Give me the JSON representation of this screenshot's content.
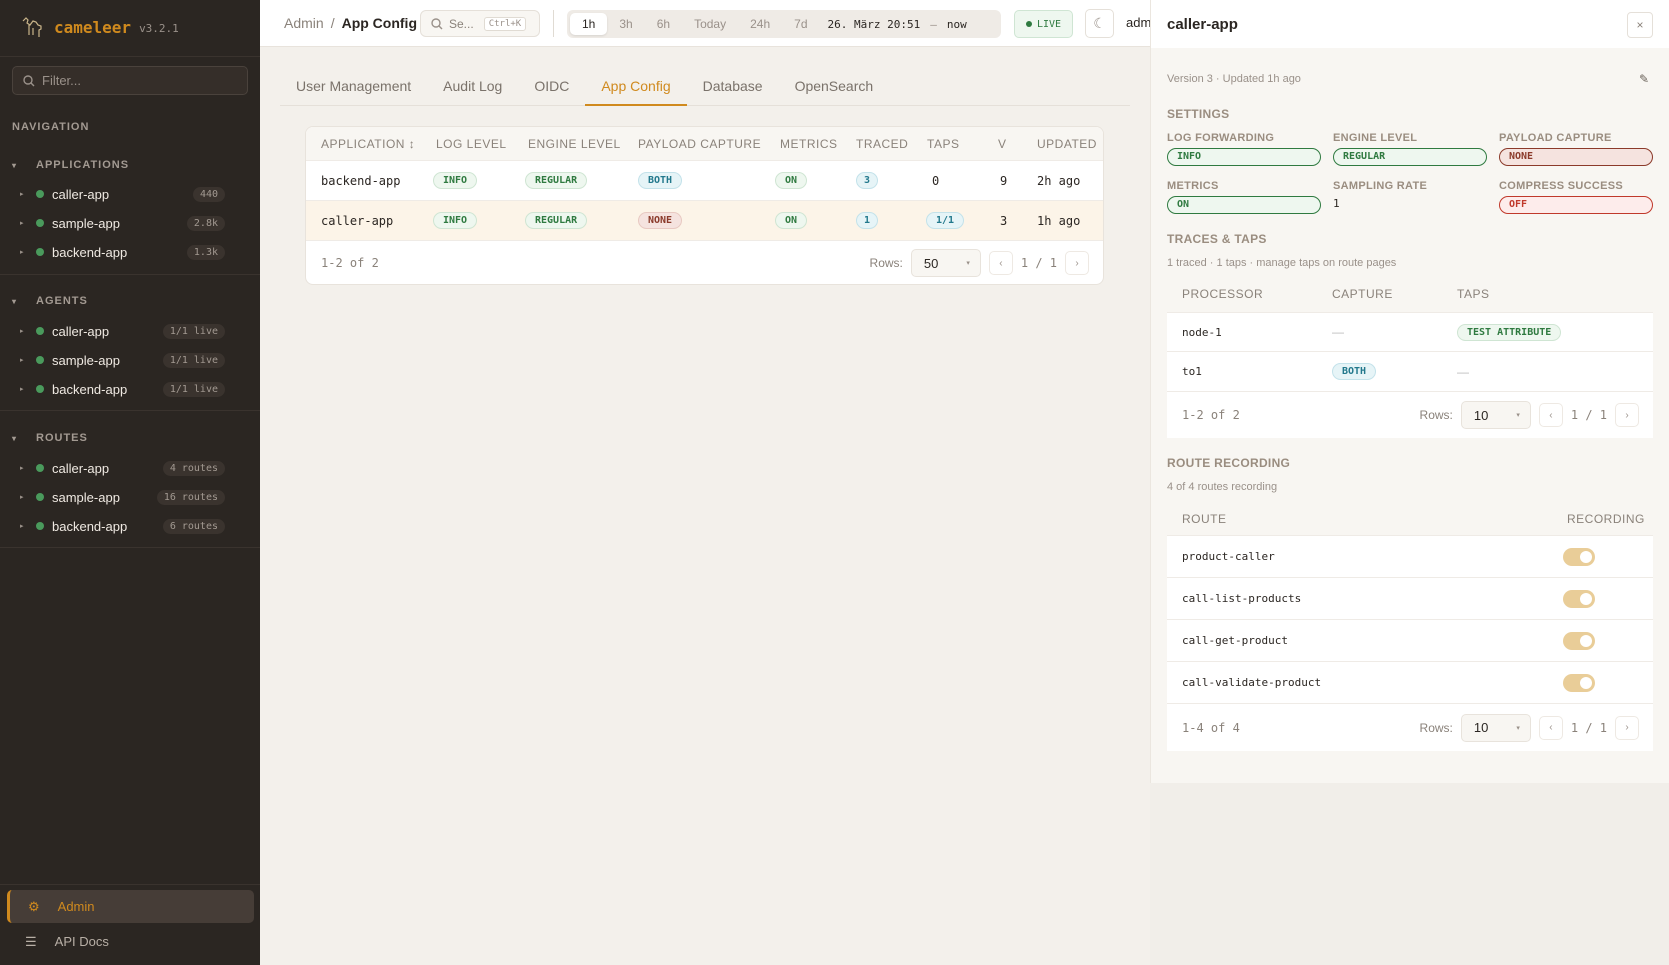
{
  "app": {
    "name": "cameleer",
    "version": "v3.2.1"
  },
  "sidebar": {
    "filter_placeholder": "Filter...",
    "nav_label": "NAVIGATION",
    "sections": [
      {
        "title": "APPLICATIONS",
        "items": [
          {
            "label": "caller-app",
            "count": "440"
          },
          {
            "label": "sample-app",
            "count": "2.8k"
          },
          {
            "label": "backend-app",
            "count": "1.3k"
          }
        ]
      },
      {
        "title": "AGENTS",
        "items": [
          {
            "label": "caller-app",
            "count": "1/1 live"
          },
          {
            "label": "sample-app",
            "count": "1/1 live"
          },
          {
            "label": "backend-app",
            "count": "1/1 live"
          }
        ]
      },
      {
        "title": "ROUTES",
        "items": [
          {
            "label": "caller-app",
            "count": "4 routes"
          },
          {
            "label": "sample-app",
            "count": "16 routes"
          },
          {
            "label": "backend-app",
            "count": "6 routes"
          }
        ]
      }
    ],
    "bottom": [
      {
        "label": "Admin",
        "icon": "gear-icon",
        "active": true
      },
      {
        "label": "API Docs",
        "icon": "list-icon"
      }
    ]
  },
  "header": {
    "breadcrumb": [
      "Admin",
      "App Config"
    ],
    "search_placeholder": "Se...",
    "search_shortcut": "Ctrl+K",
    "ranges": [
      "1h",
      "3h",
      "6h",
      "Today",
      "24h",
      "7d"
    ],
    "selected_range": "1h",
    "range_from": "26. März 20:51",
    "range_sep": "—",
    "range_to": "now",
    "live": "LIVE",
    "user": "adm"
  },
  "tabs": [
    "User Management",
    "Audit Log",
    "OIDC",
    "App Config",
    "Database",
    "OpenSearch"
  ],
  "active_tab": "App Config",
  "table": {
    "columns": [
      "APPLICATION ↕",
      "LOG LEVEL",
      "ENGINE LEVEL",
      "PAYLOAD CAPTURE",
      "METRICS",
      "TRACED",
      "TAPS",
      "V",
      "UPDATED"
    ],
    "rows": [
      {
        "application": "backend-app",
        "log": "INFO",
        "engine": "REGULAR",
        "payload": "BOTH",
        "metrics": "ON",
        "traced": "3",
        "taps": "0",
        "v": "9",
        "updated": "2h ago"
      },
      {
        "application": "caller-app",
        "log": "INFO",
        "engine": "REGULAR",
        "payload": "NONE",
        "metrics": "ON",
        "traced": "1",
        "taps": "1/1",
        "v": "3",
        "updated": "1h ago",
        "selected": true
      }
    ],
    "summary": "1-2 of 2",
    "rows_label": "Rows:",
    "rows_per_page": "50",
    "page": "1 / 1"
  },
  "panel": {
    "title": "caller-app",
    "close": "×",
    "meta": "Version 3 · Updated 1h  ago",
    "settings_title": "SETTINGS",
    "settings": [
      {
        "label": "LOG FORWARDING",
        "value": "INFO",
        "tone": "green"
      },
      {
        "label": "ENGINE LEVEL",
        "value": "REGULAR",
        "tone": "green"
      },
      {
        "label": "PAYLOAD CAPTURE",
        "value": "NONE",
        "tone": "brown"
      },
      {
        "label": "METRICS",
        "value": "ON",
        "tone": "green"
      },
      {
        "label": "SAMPLING RATE",
        "value": "1"
      },
      {
        "label": "COMPRESS SUCCESS",
        "value": "OFF",
        "tone": "red"
      }
    ],
    "traces_title": "TRACES & TAPS",
    "traces_sub": "1 traced · 1 taps · manage taps on route pages",
    "taps_table": {
      "columns": [
        "PROCESSOR",
        "CAPTURE",
        "TAPS"
      ],
      "rows": [
        {
          "processor": "node-1",
          "capture": "—",
          "taps": "TEST ATTRIBUTE"
        },
        {
          "processor": "to1",
          "capture": "BOTH",
          "taps": "—"
        }
      ],
      "summary": "1-2 of 2",
      "rows_label": "Rows:",
      "rows_per_page": "10",
      "page": "1 / 1"
    },
    "recording_title": "ROUTE RECORDING",
    "recording_sub": "4 of 4 routes recording",
    "routes_table": {
      "columns": [
        "ROUTE",
        "RECORDING"
      ],
      "rows": [
        {
          "route": "product-caller",
          "on": true
        },
        {
          "route": "call-list-products",
          "on": true
        },
        {
          "route": "call-get-product",
          "on": true
        },
        {
          "route": "call-validate-product",
          "on": true
        }
      ],
      "summary": "1-4 of 4",
      "rows_label": "Rows:",
      "rows_per_page": "10",
      "page": "1 / 1"
    }
  },
  "colors": {
    "accent": "#d08a1e",
    "sidebar": "#2b2622",
    "live": "#2f7a40",
    "toggle": "#e9cd98"
  }
}
